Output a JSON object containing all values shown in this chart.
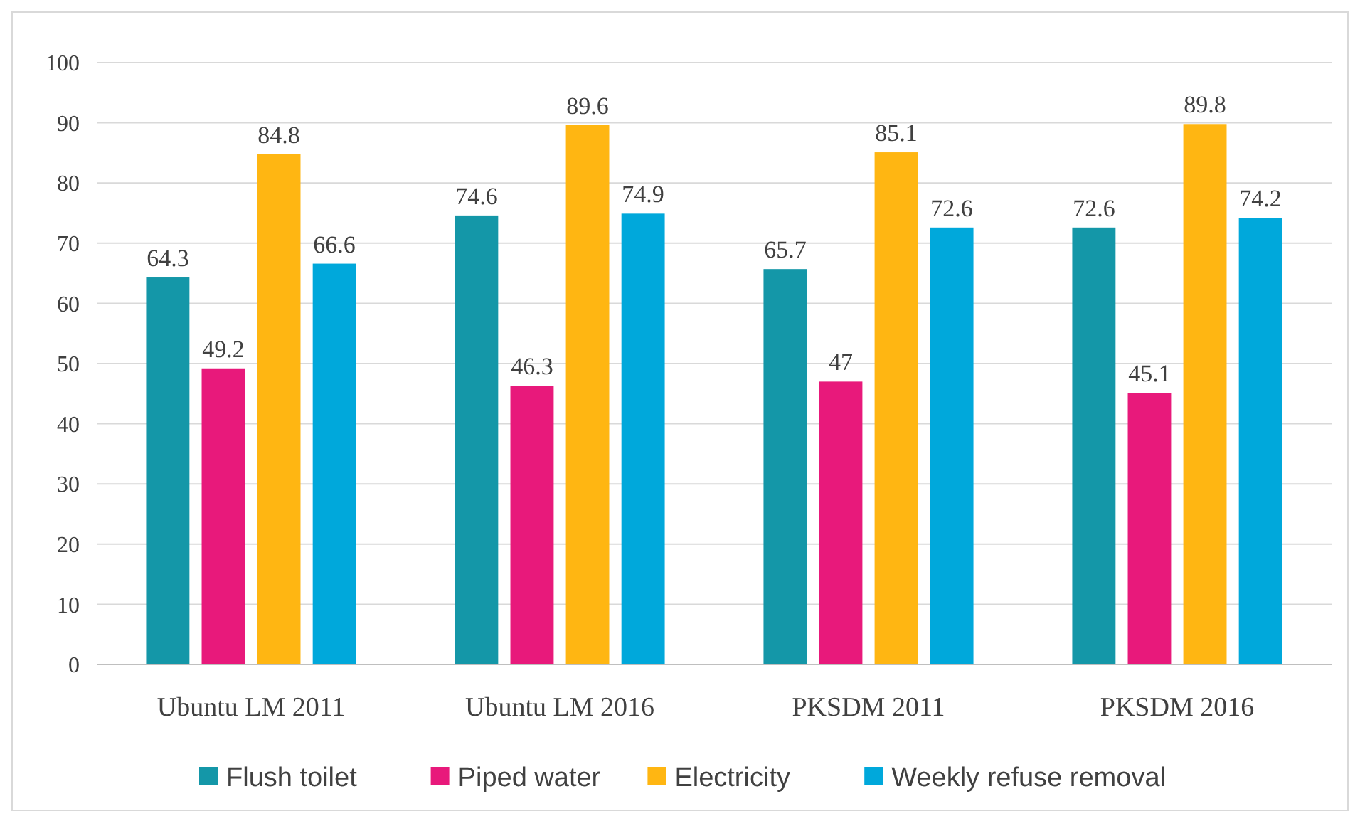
{
  "chart_data": {
    "type": "bar",
    "categories": [
      "Ubuntu LM 2011",
      "Ubuntu LM 2016",
      "PKSDM 2011",
      "PKSDM 2016"
    ],
    "series": [
      {
        "name": "Flush toilet",
        "color": "#1497a8",
        "values": [
          64.3,
          74.6,
          65.7,
          72.6
        ]
      },
      {
        "name": "Piped water",
        "color": "#e8197b",
        "values": [
          49.2,
          46.3,
          47,
          45.1
        ]
      },
      {
        "name": "Electricity",
        "color": "#ffb612",
        "values": [
          84.8,
          89.6,
          85.1,
          89.8
        ]
      },
      {
        "name": "Weekly refuse removal",
        "color": "#00a8db",
        "values": [
          66.6,
          74.9,
          72.6,
          74.2
        ]
      }
    ],
    "ylim": [
      0,
      100
    ],
    "yticks": [
      0,
      10,
      20,
      30,
      40,
      50,
      60,
      70,
      80,
      90,
      100
    ],
    "grid": "y",
    "legend": "bottom",
    "data_labels": true
  }
}
